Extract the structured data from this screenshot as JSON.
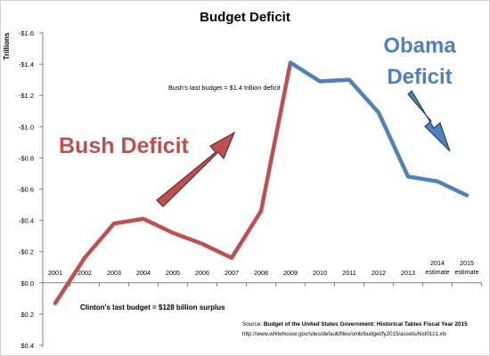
{
  "chart_data": {
    "type": "line",
    "title": "Budget Deficit",
    "ylabel": "Trillions",
    "ylim": [
      -1.6,
      0.4
    ],
    "yticks": [
      -1.6,
      -1.4,
      -1.2,
      -1.0,
      -0.8,
      -0.6,
      -0.4,
      -0.2,
      0.0,
      0.2,
      0.4
    ],
    "ytick_labels": [
      "-$1.6",
      "-$1.4",
      "-$1.2",
      "-$1.0",
      "-$0.8",
      "-$0.6",
      "-$0.4",
      "-$0.2",
      "$0.0",
      "$0.2",
      "$0.4"
    ],
    "categories": [
      "2001",
      "2002",
      "2003",
      "2004",
      "2005",
      "2006",
      "2007",
      "2008",
      "2009",
      "2010",
      "2011",
      "2012",
      "2013",
      "2014 estimate",
      "2015 estimate"
    ],
    "category_lines": [
      [
        "2001"
      ],
      [
        "2002"
      ],
      [
        "2003"
      ],
      [
        "2004"
      ],
      [
        "2005"
      ],
      [
        "2006"
      ],
      [
        "2007"
      ],
      [
        "2008"
      ],
      [
        "2009"
      ],
      [
        "2010"
      ],
      [
        "2011"
      ],
      [
        "2012"
      ],
      [
        "2013"
      ],
      [
        "2014",
        "estimate"
      ],
      [
        "2015",
        "estimate"
      ]
    ],
    "grid": false,
    "series": [
      {
        "name": "Bush Deficit",
        "color": "#c0504d",
        "x": [
          "2001",
          "2002",
          "2003",
          "2004",
          "2005",
          "2006",
          "2007",
          "2008",
          "2009"
        ],
        "values": [
          0.13,
          -0.16,
          -0.38,
          -0.41,
          -0.32,
          -0.25,
          -0.16,
          -0.46,
          -1.41
        ]
      },
      {
        "name": "Obama Deficit",
        "color": "#4f81bd",
        "x": [
          "2009",
          "2010",
          "2011",
          "2012",
          "2013",
          "2014 estimate",
          "2015 estimate"
        ],
        "values": [
          -1.41,
          -1.29,
          -1.3,
          -1.09,
          -0.68,
          -0.65,
          -0.56
        ]
      }
    ],
    "annotations": {
      "bush_label": "Bush Deficit",
      "obama_label_line1": "Obama",
      "obama_label_line2": "Deficit",
      "bush_last_budget": "Bush's last budget = $1.4 trillion deficit",
      "clinton_last_budget": "Clinton's last budget = $128  billion surplus",
      "source_prefix": "Source: ",
      "source_title": "Budget of the United States Government: Historical Tables Fiscal Year 2015",
      "source_url": "http://www.whitehouse.gov/sites/default/files/omb/budget/fy2015/assets/hist01z1.xls"
    }
  }
}
